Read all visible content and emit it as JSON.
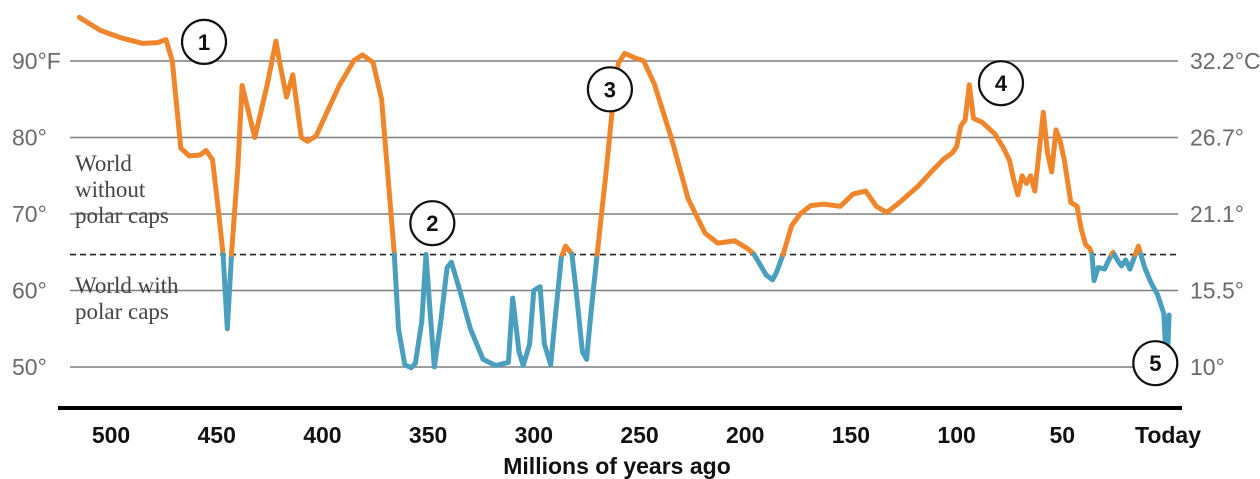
{
  "chart_data": {
    "type": "line",
    "title": "",
    "xlabel": "Millions of years ago",
    "ylabel": "",
    "x_reversed": true,
    "xlim": [
      515,
      -5
    ],
    "ylim": [
      45,
      97
    ],
    "x_ticks": [
      {
        "value": 500,
        "label": "500"
      },
      {
        "value": 450,
        "label": "450"
      },
      {
        "value": 400,
        "label": "400"
      },
      {
        "value": 350,
        "label": "350"
      },
      {
        "value": 300,
        "label": "300"
      },
      {
        "value": 250,
        "label": "250"
      },
      {
        "value": 200,
        "label": "200"
      },
      {
        "value": 150,
        "label": "150"
      },
      {
        "value": 100,
        "label": "100"
      },
      {
        "value": 50,
        "label": "50"
      },
      {
        "value": 0,
        "label": "Today"
      }
    ],
    "y_ticks_left": [
      {
        "value": 90,
        "label": "90°F"
      },
      {
        "value": 80,
        "label": "80°"
      },
      {
        "value": 70,
        "label": "70°"
      },
      {
        "value": 60,
        "label": "60°"
      },
      {
        "value": 50,
        "label": "50°"
      }
    ],
    "y_ticks_right": [
      {
        "value": 90,
        "label": "32.2°C"
      },
      {
        "value": 80,
        "label": "26.7°"
      },
      {
        "value": 70,
        "label": "21.1°"
      },
      {
        "value": 60,
        "label": "15.5°"
      },
      {
        "value": 50,
        "label": "10°"
      }
    ],
    "gridlines": [
      90,
      80,
      70,
      60,
      50
    ],
    "threshold": {
      "value": 64.7,
      "style": "dashed",
      "above_label": "World\nwithout\npolar caps",
      "below_label": "World with\npolar caps"
    },
    "colors": {
      "above": "#f0862c",
      "below": "#4b9fbe",
      "grid": "#7f7f7f",
      "axis": "#000000"
    },
    "series": [
      {
        "values": [
          [
            515,
            95.7
          ],
          [
            505,
            94.0
          ],
          [
            495,
            93.0
          ],
          [
            485,
            92.3
          ],
          [
            478,
            92.4
          ],
          [
            474,
            92.8
          ],
          [
            471,
            90.0
          ],
          [
            467,
            78.6
          ],
          [
            463,
            77.6
          ],
          [
            458,
            77.7
          ],
          [
            455,
            78.3
          ],
          [
            452,
            77.1
          ],
          [
            449,
            70.0
          ],
          [
            447,
            64.8
          ],
          [
            445,
            55.0
          ],
          [
            443,
            64.8
          ],
          [
            440,
            76.0
          ],
          [
            438,
            86.8
          ],
          [
            432,
            80.0
          ],
          [
            426,
            87.0
          ],
          [
            422,
            92.6
          ],
          [
            420,
            89.5
          ],
          [
            417,
            85.3
          ],
          [
            414,
            88.2
          ],
          [
            410,
            80.0
          ],
          [
            407,
            79.5
          ],
          [
            403,
            80.2
          ],
          [
            398,
            83.2
          ],
          [
            392,
            86.8
          ],
          [
            385,
            90.1
          ],
          [
            381,
            90.8
          ],
          [
            376,
            89.8
          ],
          [
            372,
            85.0
          ],
          [
            369,
            75.0
          ],
          [
            366,
            64.8
          ],
          [
            364,
            55.0
          ],
          [
            361,
            50.3
          ],
          [
            358,
            49.9
          ],
          [
            356,
            50.5
          ],
          [
            353,
            56.0
          ],
          [
            351,
            64.7
          ],
          [
            349,
            57.0
          ],
          [
            347,
            50.0
          ],
          [
            344,
            56.0
          ],
          [
            341,
            63.0
          ],
          [
            339,
            63.7
          ],
          [
            335,
            60.0
          ],
          [
            330,
            55.0
          ],
          [
            324,
            51.0
          ],
          [
            318,
            50.2
          ],
          [
            312,
            50.6
          ],
          [
            310,
            59.0
          ],
          [
            307,
            52.0
          ],
          [
            305,
            50.2
          ],
          [
            302,
            53.0
          ],
          [
            300,
            60.0
          ],
          [
            297,
            60.5
          ],
          [
            295,
            53.0
          ],
          [
            292,
            50.3
          ],
          [
            290,
            56.0
          ],
          [
            287,
            64.3
          ],
          [
            285,
            65.8
          ],
          [
            282,
            64.8
          ],
          [
            280,
            60.0
          ],
          [
            277,
            52.0
          ],
          [
            275,
            51.0
          ],
          [
            273,
            57.0
          ],
          [
            270,
            64.8
          ],
          [
            266,
            75.0
          ],
          [
            262,
            86.0
          ],
          [
            260,
            89.7
          ],
          [
            257,
            91.0
          ],
          [
            253,
            90.5
          ],
          [
            248,
            90.0
          ],
          [
            243,
            87.0
          ],
          [
            235,
            80.0
          ],
          [
            227,
            72.0
          ],
          [
            219,
            67.5
          ],
          [
            213,
            66.2
          ],
          [
            205,
            66.5
          ],
          [
            199,
            65.5
          ],
          [
            196,
            64.8
          ],
          [
            190,
            62.0
          ],
          [
            187,
            61.4
          ],
          [
            185,
            62.5
          ],
          [
            182,
            64.8
          ],
          [
            178,
            68.5
          ],
          [
            174,
            70.0
          ],
          [
            169,
            71.1
          ],
          [
            163,
            71.3
          ],
          [
            155,
            71.0
          ],
          [
            149,
            72.6
          ],
          [
            143,
            73.0
          ],
          [
            138,
            71.0
          ],
          [
            133,
            70.2
          ],
          [
            127,
            71.5
          ],
          [
            118,
            73.7
          ],
          [
            112,
            75.5
          ],
          [
            106,
            77.2
          ],
          [
            102,
            78.0
          ],
          [
            100,
            78.8
          ],
          [
            98,
            81.5
          ],
          [
            96,
            82.3
          ],
          [
            94,
            86.9
          ],
          [
            92,
            82.5
          ],
          [
            88,
            82.0
          ],
          [
            82,
            80.5
          ],
          [
            78,
            78.7
          ],
          [
            75,
            77.0
          ],
          [
            73,
            74.5
          ],
          [
            71,
            72.5
          ],
          [
            69,
            75.0
          ],
          [
            67,
            74.0
          ],
          [
            65,
            75.0
          ],
          [
            63,
            73.0
          ],
          [
            61,
            78.0
          ],
          [
            59,
            83.3
          ],
          [
            57,
            78.0
          ],
          [
            55,
            75.5
          ],
          [
            53,
            81.0
          ],
          [
            51,
            79.5
          ],
          [
            49,
            77.0
          ],
          [
            46,
            71.5
          ],
          [
            43,
            71.0
          ],
          [
            41,
            68.0
          ],
          [
            39,
            66.0
          ],
          [
            37,
            65.5
          ],
          [
            36,
            64.8
          ],
          [
            35,
            61.3
          ],
          [
            33,
            63.0
          ],
          [
            30,
            62.8
          ],
          [
            28,
            64.0
          ],
          [
            26,
            65.0
          ],
          [
            24,
            64.0
          ],
          [
            22,
            63.2
          ],
          [
            20,
            64.0
          ],
          [
            18,
            62.8
          ],
          [
            16,
            64.3
          ],
          [
            14,
            65.8
          ],
          [
            13,
            64.8
          ],
          [
            11,
            63.0
          ],
          [
            8,
            61.0
          ],
          [
            5,
            59.5
          ],
          [
            2,
            57.0
          ],
          [
            0.5,
            49.0
          ],
          [
            -0.5,
            56.8
          ]
        ]
      }
    ],
    "annotations": [
      {
        "label": "1",
        "x": 456,
        "y": 92.5
      },
      {
        "label": "2",
        "x": 348,
        "y": 68.8
      },
      {
        "label": "3",
        "x": 264,
        "y": 86.3
      },
      {
        "label": "4",
        "x": 79,
        "y": 87.1
      },
      {
        "label": "5",
        "x": 6,
        "y": 50.5
      }
    ]
  }
}
